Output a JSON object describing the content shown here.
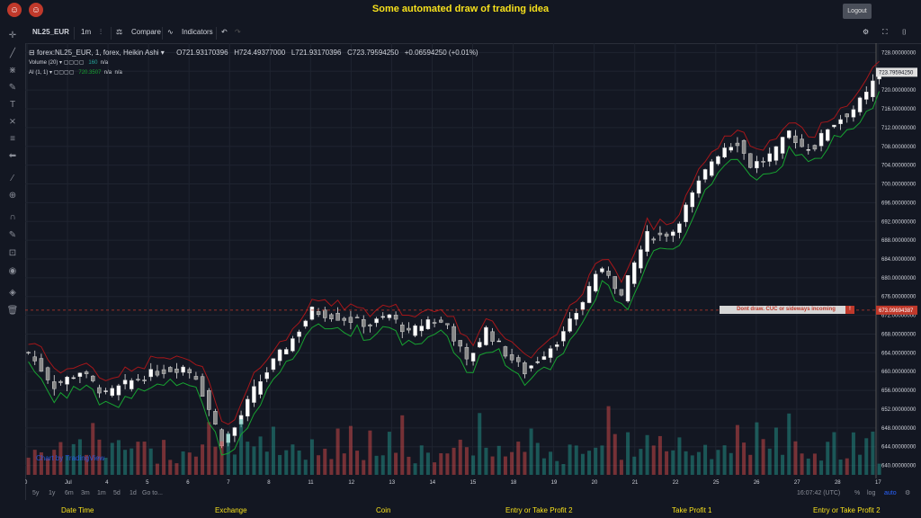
{
  "header": {
    "title": "Some automated draw of trading idea",
    "logout_label": "Logout"
  },
  "toolbar": {
    "symbol": "NL25_EUR",
    "interval": "1m",
    "compare": "Compare",
    "indicators": "Indicators"
  },
  "legend": {
    "main": "forex:NL25_EUR, 1, forex, Heikin Ashi",
    "o": "O721.93170396",
    "h": "H724.49377000",
    "l": "L721.93170396",
    "c": "C723.79594250",
    "chg": "+0.06594250 (+0.01%)",
    "vol": "Volume (20)",
    "vol_val": "160",
    "vol_na": "n/a",
    "ai": "AI (1, 1)",
    "ai_val": "720.3507",
    "ai_na1": "n/a",
    "ai_na2": "n/a"
  },
  "alert": {
    "text": "Dont draw. CUC or sideways incoming",
    "icon": "!"
  },
  "price_marker": "723.79594250",
  "dashed_marker": "673.09694387",
  "watermark": "Chart by TradingView",
  "bottom": {
    "ranges": [
      "5y",
      "1y",
      "6m",
      "3m",
      "1m",
      "5d",
      "1d"
    ],
    "goto": "Go to...",
    "time": "16:07:42 (UTC)",
    "pct": "%",
    "log": "log",
    "auto": "auto"
  },
  "footer": [
    "Date Time",
    "Exchange",
    "Coin",
    "Entry or Take Profit 2",
    "Take Profit 1",
    "Entry or Take Profit 2"
  ],
  "colors": {
    "up": "#26a69a",
    "down": "#ef5350",
    "greenline": "#17a331",
    "redline": "#a5161a",
    "bg": "#131722"
  },
  "chart_data": {
    "type": "candlestick",
    "y_ticks": [
      "728.00000000",
      "724.00000000",
      "720.00000000",
      "716.00000000",
      "712.00000000",
      "708.00000000",
      "704.00000000",
      "700.00000000",
      "696.00000000",
      "692.00000000",
      "688.00000000",
      "684.00000000",
      "680.00000000",
      "676.00000000",
      "672.00000000",
      "668.00000000",
      "664.00000000",
      "660.00000000",
      "656.00000000",
      "652.00000000",
      "648.00000000",
      "644.00000000",
      "640.00000000"
    ],
    "x_ticks": [
      "0",
      "Jul",
      "4",
      "5",
      "6",
      "7",
      "8",
      "11",
      "12",
      "13",
      "14",
      "15",
      "18",
      "19",
      "20",
      "21",
      "22",
      "25",
      "26",
      "27",
      "28",
      "17"
    ],
    "ylim": [
      638,
      730
    ],
    "close_path": [
      [
        0,
        664
      ],
      [
        4,
        657
      ],
      [
        8,
        660
      ],
      [
        12,
        655
      ],
      [
        16,
        658
      ],
      [
        20,
        660
      ],
      [
        24,
        661
      ],
      [
        26,
        659
      ],
      [
        28,
        652
      ],
      [
        30,
        645
      ],
      [
        32,
        648
      ],
      [
        35,
        656
      ],
      [
        38,
        662
      ],
      [
        41,
        667
      ],
      [
        44,
        673
      ],
      [
        47,
        672
      ],
      [
        50,
        671
      ],
      [
        53,
        670
      ],
      [
        56,
        672
      ],
      [
        59,
        668
      ],
      [
        62,
        671
      ],
      [
        65,
        670
      ],
      [
        68,
        662
      ],
      [
        71,
        669
      ],
      [
        74,
        664
      ],
      [
        77,
        660
      ],
      [
        80,
        664
      ],
      [
        83,
        668
      ],
      [
        86,
        675
      ],
      [
        88,
        681
      ],
      [
        90,
        681
      ],
      [
        92,
        676
      ],
      [
        94,
        683
      ],
      [
        96,
        689
      ],
      [
        98,
        689
      ],
      [
        100,
        690
      ],
      [
        102,
        695
      ],
      [
        104,
        700
      ],
      [
        106,
        705
      ],
      [
        108,
        708
      ],
      [
        110,
        709
      ],
      [
        112,
        704
      ],
      [
        114,
        705
      ],
      [
        116,
        707
      ],
      [
        118,
        711
      ],
      [
        120,
        708
      ],
      [
        122,
        708
      ],
      [
        124,
        712
      ],
      [
        126,
        714
      ],
      [
        128,
        716
      ],
      [
        130,
        719
      ],
      [
        132,
        724
      ]
    ],
    "volume_seed": [
      20,
      30,
      25,
      18,
      40,
      35,
      22,
      28,
      50,
      24,
      60,
      35,
      20,
      45,
      30,
      25,
      38,
      27,
      55,
      30
    ]
  }
}
